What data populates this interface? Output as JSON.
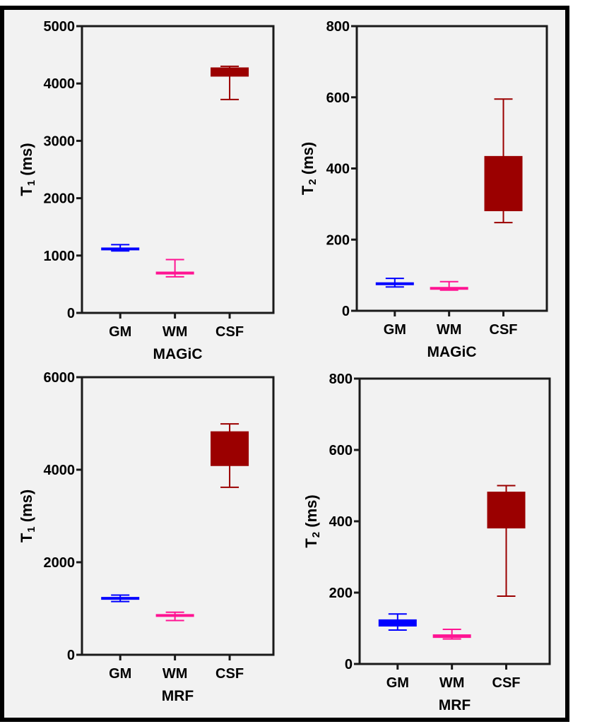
{
  "chart_data": [
    {
      "type": "box",
      "title": "",
      "xlabel": "MAGiC",
      "ylabel": "T1 (ms)",
      "ylabel_main": "T",
      "ylabel_sub": "1",
      "ylabel_unit": " (ms)",
      "ylim": [
        0,
        5000
      ],
      "yticks": [
        0,
        1000,
        2000,
        3000,
        4000,
        5000
      ],
      "categories": [
        "GM",
        "WM",
        "CSF"
      ],
      "series": [
        {
          "name": "GM",
          "color": "#0000ff",
          "min": 1080,
          "q1": 1110,
          "q3": 1140,
          "max": 1190
        },
        {
          "name": "WM",
          "color": "#ff1493",
          "min": 630,
          "q1": 670,
          "q3": 720,
          "max": 930
        },
        {
          "name": "CSF",
          "color": "#9b0000",
          "min": 3720,
          "q1": 4120,
          "q3": 4280,
          "max": 4300
        }
      ]
    },
    {
      "type": "box",
      "xlabel": "MAGiC",
      "ylabel": "T2 (ms)",
      "ylabel_main": "T",
      "ylabel_sub": "2",
      "ylabel_unit": " (ms)",
      "ylim": [
        0,
        800
      ],
      "yticks": [
        0,
        200,
        400,
        600,
        800
      ],
      "categories": [
        "GM",
        "WM",
        "CSF"
      ],
      "series": [
        {
          "name": "GM",
          "color": "#0000ff",
          "min": 67,
          "q1": 72,
          "q3": 80,
          "max": 91
        },
        {
          "name": "WM",
          "color": "#ff1493",
          "min": 58,
          "q1": 60,
          "q3": 67,
          "max": 82
        },
        {
          "name": "CSF",
          "color": "#9b0000",
          "min": 248,
          "q1": 280,
          "q3": 435,
          "max": 595
        }
      ]
    },
    {
      "type": "box",
      "xlabel": "MRF",
      "ylabel": "T1 (ms)",
      "ylabel_main": "T",
      "ylabel_sub": "1",
      "ylabel_unit": " (ms)",
      "ylim": [
        0,
        6000
      ],
      "yticks": [
        0,
        2000,
        4000,
        6000
      ],
      "categories": [
        "GM",
        "WM",
        "CSF"
      ],
      "series": [
        {
          "name": "GM",
          "color": "#0000ff",
          "min": 1150,
          "q1": 1200,
          "q3": 1250,
          "max": 1290
        },
        {
          "name": "WM",
          "color": "#ff1493",
          "min": 740,
          "q1": 820,
          "q3": 880,
          "max": 920
        },
        {
          "name": "CSF",
          "color": "#9b0000",
          "min": 3620,
          "q1": 4080,
          "q3": 4830,
          "max": 4990
        }
      ]
    },
    {
      "type": "box",
      "xlabel": "MRF",
      "ylabel": "T2 (ms)",
      "ylabel_main": "T",
      "ylabel_sub": "2",
      "ylabel_unit": " (ms)",
      "ylim": [
        0,
        800
      ],
      "yticks": [
        0,
        200,
        400,
        600,
        800
      ],
      "categories": [
        "GM",
        "WM",
        "CSF"
      ],
      "series": [
        {
          "name": "GM",
          "color": "#0000ff",
          "min": 95,
          "q1": 105,
          "q3": 125,
          "max": 140
        },
        {
          "name": "WM",
          "color": "#ff1493",
          "min": 70,
          "q1": 73,
          "q3": 83,
          "max": 97
        },
        {
          "name": "CSF",
          "color": "#9b0000",
          "min": 190,
          "q1": 380,
          "q3": 483,
          "max": 500
        }
      ]
    }
  ]
}
